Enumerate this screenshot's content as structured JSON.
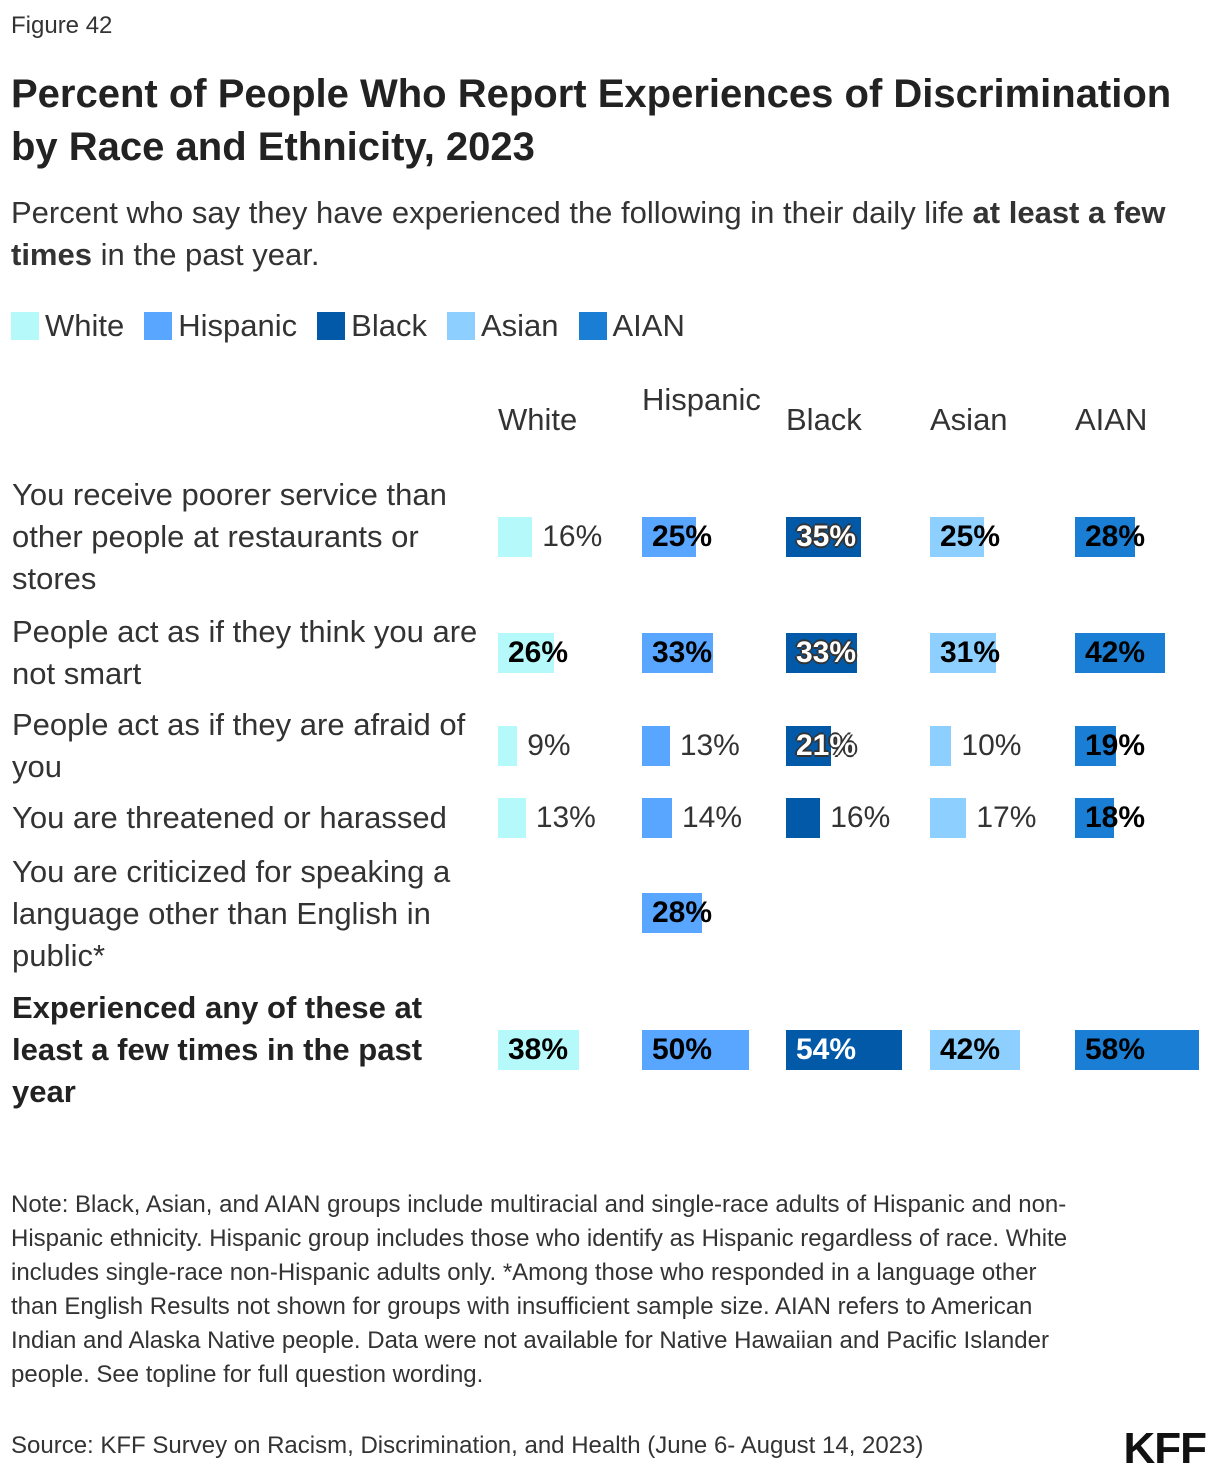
{
  "figure_label": "Figure 42",
  "chart_data": {
    "type": "bar",
    "title": "Percent of People Who Report Experiences of Discrimination by Race and Ethnicity, 2023",
    "subtitle_pre": "Percent who say they have experienced the following in their daily life ",
    "subtitle_bold": "at least a few times",
    "subtitle_post": " in the past year.",
    "series": [
      {
        "name": "White",
        "color": "#b5f9fb"
      },
      {
        "name": "Hispanic",
        "color": "#58a6ff"
      },
      {
        "name": "Black",
        "color": "#0259a8"
      },
      {
        "name": "Asian",
        "color": "#8dd0ff"
      },
      {
        "name": "AIAN",
        "color": "#1a7fd4"
      }
    ],
    "column_headers": [
      "White",
      "Hispanic",
      "Black",
      "Asian",
      "AIAN"
    ],
    "categories": [
      {
        "label": "You receive poorer service than other people at restaurants or stores",
        "values": [
          16,
          25,
          35,
          25,
          28
        ],
        "bold": false
      },
      {
        "label": "People act as if they think you are not smart",
        "values": [
          26,
          33,
          33,
          31,
          42
        ],
        "bold": false
      },
      {
        "label": "People act as if they are afraid of you",
        "values": [
          9,
          13,
          21,
          10,
          19
        ],
        "bold": false
      },
      {
        "label": "You are threatened or harassed",
        "values": [
          13,
          14,
          16,
          17,
          18
        ],
        "bold": false
      },
      {
        "label": "You are criticized for speaking a language other than English in public*",
        "values": [
          null,
          28,
          null,
          null,
          null
        ],
        "bold": false
      },
      {
        "label": "Experienced any of these at least a few times in the past year",
        "values": [
          38,
          50,
          54,
          42,
          58
        ],
        "bold": true
      }
    ],
    "unit": "%",
    "legend_position": "top-left"
  },
  "note": "Note: Black, Asian, and AIAN groups include multiracial and single-race adults of Hispanic and non-Hispanic ethnicity. Hispanic group includes those who identify as Hispanic regardless of race. White includes single-race non-Hispanic adults only. *Among those who responded in a language other than English Results not shown for groups with insufficient sample size. AIAN refers to American Indian and Alaska Native people. Data were not available for Native Hawaiian and Pacific Islander people. See topline for full question wording.",
  "source": "Source: KFF Survey on Racism, Discrimination, and Health (June 6- August 14, 2023)",
  "logo": "KFF"
}
